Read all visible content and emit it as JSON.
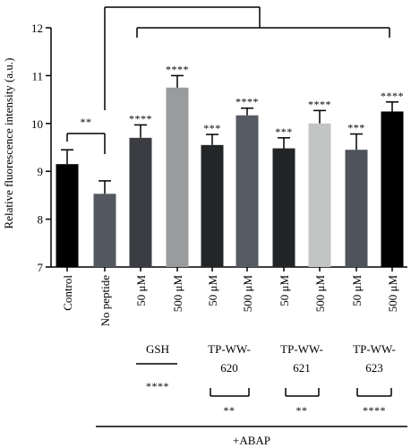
{
  "chart_data": {
    "type": "bar",
    "ylabel": "Relative fluorescence intensity (a.u.)",
    "ylim": [
      7,
      12
    ],
    "yticks": [
      "7",
      "8",
      "9",
      "10",
      "11",
      "12"
    ],
    "categories": [
      "Control",
      "No peptide",
      "50 μM",
      "500 μM",
      "50 μM",
      "500 μM",
      "50 μM",
      "500 μM",
      "50 μM",
      "500 μM"
    ],
    "values": [
      9.15,
      8.53,
      9.7,
      10.75,
      9.55,
      10.17,
      9.48,
      10.0,
      9.45,
      10.25
    ],
    "errors": [
      0.3,
      0.27,
      0.27,
      0.25,
      0.22,
      0.15,
      0.22,
      0.27,
      0.33,
      0.2
    ],
    "colors": [
      "#000000",
      "#545861",
      "#3b3d42",
      "#999b9c",
      "#232527",
      "#575b63",
      "#222426",
      "#c3c4c4",
      "#4f535b",
      "#000000"
    ],
    "significance": [
      "",
      "",
      "****",
      "****",
      "***",
      "****",
      "***",
      "****",
      "***",
      "****"
    ],
    "control_vs_nopeptide": "**",
    "groups": [
      {
        "label": "GSH",
        "stars": "****"
      },
      {
        "label_lines": [
          "TP-WW-",
          "620"
        ],
        "stars": "**"
      },
      {
        "label_lines": [
          "TP-WW-",
          "621"
        ],
        "stars": "**"
      },
      {
        "label_lines": [
          "TP-WW-",
          "623"
        ],
        "stars": "****"
      }
    ],
    "treatment_label": "+ABAP"
  }
}
